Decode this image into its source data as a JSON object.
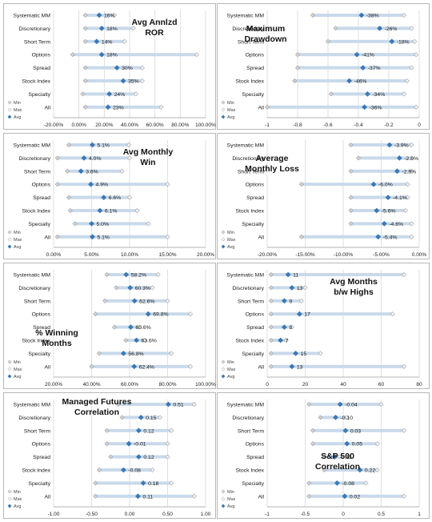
{
  "categories": [
    "Systematic MM",
    "Discretionary",
    "Short Term",
    "Options",
    "Spread",
    "Stock Index",
    "Specialty",
    "All"
  ],
  "legend": {
    "min": "Min",
    "max": "Max",
    "avg": "Avg"
  },
  "colors": {
    "bar": "#c8d9ea",
    "avg": "#3b79b4",
    "minmax": "#d2d2d2",
    "minmax_stroke": "#a2a2a2",
    "grid": "#d8d8d8",
    "text": "#1a1a1a"
  },
  "chart_data": [
    {
      "type": "dot",
      "title_lines": [
        "Avg Annlzd",
        "ROR"
      ],
      "xlim": [
        -20,
        100
      ],
      "ticks": [
        -20,
        0,
        20,
        40,
        60,
        80,
        100
      ],
      "tick_labels": [
        "-20.00%",
        "0.00%",
        "20.00%",
        "40.00%",
        "60.00%",
        "80.00%",
        "100.00%"
      ],
      "min": [
        5,
        5,
        5,
        -5,
        5,
        5,
        3,
        5
      ],
      "avg": [
        16,
        18,
        14,
        18,
        30,
        35,
        24,
        23
      ],
      "max": [
        28,
        43,
        36,
        93,
        50,
        50,
        45,
        65
      ],
      "labels": [
        "16%",
        "18%",
        "14%",
        "18%",
        "30%",
        "35%",
        "24%",
        "23%"
      ]
    },
    {
      "type": "dot",
      "title_lines": [
        "Maximum",
        "Drawdown"
      ],
      "xlim": [
        -1,
        0
      ],
      "ticks": [
        -1,
        -0.8,
        -0.6,
        -0.4,
        -0.2,
        0
      ],
      "tick_labels": [
        "-1",
        "-0.8",
        "-0.6",
        "-0.4",
        "-0.2",
        "0"
      ],
      "min": [
        -0.7,
        -0.55,
        -0.6,
        -0.8,
        -0.8,
        -0.82,
        -0.58,
        -1
      ],
      "avg": [
        -0.38,
        -0.26,
        -0.18,
        -0.41,
        -0.37,
        -0.46,
        -0.34,
        -0.36
      ],
      "max": [
        -0.1,
        -0.05,
        -0.03,
        -0.02,
        -0.05,
        -0.08,
        -0.1,
        -0.02
      ],
      "labels": [
        "-38%",
        "-26%",
        "-18%",
        "-41%",
        "-37%",
        "-46%",
        "-34%",
        "-36%"
      ]
    },
    {
      "type": "dot",
      "title_lines": [
        "Avg Monthly",
        "Win"
      ],
      "xlim": [
        0,
        20
      ],
      "ticks": [
        0,
        5,
        10,
        15,
        20
      ],
      "tick_labels": [
        "0.00%",
        "5.00%",
        "10.00%",
        "15.00%",
        "20.00%"
      ],
      "min": [
        2,
        0.5,
        1.8,
        0.5,
        2,
        2.2,
        2.8,
        0.5
      ],
      "avg": [
        5.1,
        4.0,
        3.6,
        4.9,
        6.6,
        6.1,
        5.0,
        5.1
      ],
      "max": [
        9.9,
        10,
        9,
        15,
        10,
        11,
        12.5,
        15
      ],
      "labels": [
        "5.1%",
        "4.0%",
        "3.6%",
        "4.9%",
        "6.6%",
        "6.1%",
        "5.0%",
        "5.1%"
      ]
    },
    {
      "type": "dot",
      "title_lines": [
        "Average",
        "Monthly Loss"
      ],
      "xlim": [
        -20,
        0
      ],
      "ticks": [
        -20,
        -15,
        -10,
        -5,
        0
      ],
      "tick_labels": [
        "-20.00%",
        "-15.00%",
        "-10.00%",
        "-5.00%",
        "0.00%"
      ],
      "min": [
        -9,
        -8,
        -9,
        -15.5,
        -9,
        -9,
        -9,
        -15.5
      ],
      "avg": [
        -3.9,
        -2.6,
        -2.9,
        -6.0,
        -4.1,
        -5.6,
        -4.6,
        -5.4
      ],
      "max": [
        -1,
        -1,
        -1,
        -1.5,
        -1.5,
        -1.8,
        -1,
        -1
      ],
      "labels": [
        "-3.9%",
        "-2.6%",
        "-2.9%",
        "-6.0%",
        "-4.1%",
        "-5.6%",
        "-4.6%",
        "-5.4%"
      ]
    },
    {
      "type": "dot",
      "title_lines": [
        "% Winning",
        "Months"
      ],
      "xlim": [
        20,
        100
      ],
      "ticks": [
        20,
        40,
        60,
        80,
        100
      ],
      "tick_labels": [
        "20.00%",
        "40.00%",
        "60.00%",
        "80.00%",
        "100.00%"
      ],
      "min": [
        48,
        53,
        47,
        42,
        52,
        58,
        44,
        40
      ],
      "avg": [
        58.2,
        60.3,
        62.6,
        69.8,
        60.6,
        63.6,
        56.8,
        62.4
      ],
      "max": [
        75,
        72,
        80,
        92,
        65,
        68,
        82,
        92
      ],
      "labels": [
        "58.2%",
        "60.3%",
        "62.6%",
        "69.8%",
        "60.6%",
        "63.6%",
        "56.8%",
        "62.4%"
      ]
    },
    {
      "type": "dot",
      "title_lines": [
        "Avg Months",
        "b/w Highs"
      ],
      "xlim": [
        0,
        80
      ],
      "ticks": [
        0,
        20,
        40,
        60,
        80
      ],
      "tick_labels": [
        "0",
        "20",
        "40",
        "60",
        "80"
      ],
      "min": [
        2,
        2,
        2,
        2,
        2,
        2,
        2,
        2
      ],
      "avg": [
        11,
        13,
        9,
        17,
        9,
        7,
        15,
        13
      ],
      "max": [
        72,
        20,
        18,
        66,
        13,
        10,
        28,
        72
      ],
      "labels": [
        "11",
        "13",
        "9",
        "17",
        "9",
        "7",
        "15",
        "13"
      ]
    },
    {
      "type": "dot",
      "title_lines": [
        "Managed Futures",
        "Correlation"
      ],
      "xlim": [
        -1,
        1
      ],
      "ticks": [
        -1,
        -0.5,
        0,
        0.5,
        1
      ],
      "tick_labels": [
        "-1.00",
        "-0.50",
        "0.00",
        "0.50",
        "1.00"
      ],
      "min": [
        -0.15,
        -0.1,
        -0.3,
        -0.3,
        -0.25,
        -0.4,
        -0.45,
        -0.45
      ],
      "avg": [
        0.51,
        0.15,
        0.12,
        -0.01,
        0.12,
        -0.08,
        0.18,
        0.11
      ],
      "max": [
        0.85,
        0.4,
        0.55,
        0.5,
        0.5,
        0.3,
        0.55,
        0.85
      ],
      "labels": [
        "0.51",
        "0.15",
        "0.12",
        "-0.01",
        "0.12",
        "-0.08",
        "0.18",
        "0.11"
      ]
    },
    {
      "type": "dot",
      "title_lines": [
        "S&P 500",
        "Correlation"
      ],
      "xlim": [
        -1,
        1
      ],
      "ticks": [
        -1,
        -0.5,
        0,
        0.5,
        1
      ],
      "tick_labels": [
        "-1",
        "-0.5",
        "0",
        "0.5",
        "1"
      ],
      "min": [
        -0.45,
        -0.3,
        -0.4,
        -0.4,
        -0.25,
        -0.25,
        -0.45,
        -0.45
      ],
      "avg": [
        -0.04,
        -0.1,
        0.03,
        0.05,
        -0.11,
        0.22,
        -0.08,
        0.02
      ],
      "max": [
        0.5,
        0.05,
        0.8,
        0.45,
        -0.05,
        0.45,
        0.3,
        0.8
      ],
      "labels": [
        "-0.04",
        "-0.10",
        "0.03",
        "0.05",
        "-0.11",
        "0.22",
        "-0.08",
        "0.02"
      ]
    }
  ]
}
